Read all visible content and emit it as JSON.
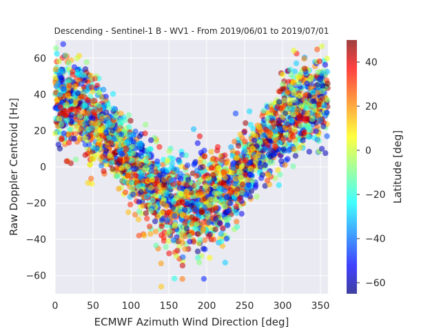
{
  "chart_data": {
    "type": "scatter",
    "title": "Descending - Sentinel-1 B - WV1 - From 2019/06/01 to 2019/07/01",
    "xlabel": "ECMWF Azimuth Wind Direction [deg]",
    "ylabel": "Raw Doppler Centroid [Hz]",
    "xlim": [
      0,
      360
    ],
    "ylim": [
      -70,
      70
    ],
    "xticks": [
      "0",
      "50",
      "100",
      "150",
      "200",
      "250",
      "300",
      "350"
    ],
    "yticks": [
      "60",
      "40",
      "20",
      "0",
      "−20",
      "−40",
      "−60"
    ],
    "grid": true,
    "colorbar": {
      "label": "Latitude [deg]",
      "range": [
        -65,
        50
      ],
      "ticks": [
        "40",
        "20",
        "0",
        "−20",
        "−40",
        "−60"
      ],
      "colormap": "jet"
    },
    "point_count": 3000,
    "trend": {
      "description": "V-shaped relation: Doppler ~ 30*cos(azimuth) with minimum near 180 deg",
      "amplitude_hz": 30,
      "samples": [
        {
          "x": 0,
          "y": 40
        },
        {
          "x": 50,
          "y": 25
        },
        {
          "x": 100,
          "y": -5
        },
        {
          "x": 150,
          "y": -15
        },
        {
          "x": 200,
          "y": -12
        },
        {
          "x": 250,
          "y": 5
        },
        {
          "x": 300,
          "y": 30
        },
        {
          "x": 350,
          "y": 40
        }
      ]
    }
  }
}
